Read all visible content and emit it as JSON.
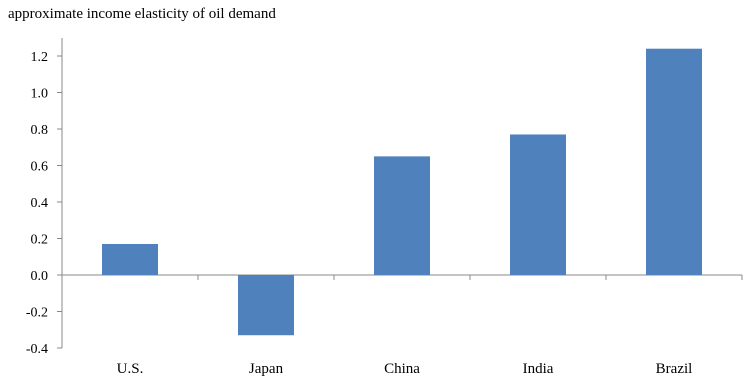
{
  "chart_data": {
    "type": "bar",
    "title": "approximate income elasticity  of oil demand",
    "categories": [
      "U.S.",
      "Japan",
      "China",
      "India",
      "Brazil"
    ],
    "values": [
      0.17,
      -0.33,
      0.65,
      0.77,
      1.24
    ],
    "ylim": [
      -0.4,
      1.3
    ],
    "yticks": [
      "1.2",
      "1.0",
      "0.8",
      "0.6",
      "0.4",
      "0.2",
      "0.0",
      "-0.2",
      "-0.4"
    ],
    "ytick_values": [
      1.2,
      1.0,
      0.8,
      0.6,
      0.4,
      0.2,
      0.0,
      -0.2,
      -0.4
    ],
    "xlabel": "",
    "ylabel": "",
    "grid": false,
    "bar_color": "#4F81BD"
  }
}
